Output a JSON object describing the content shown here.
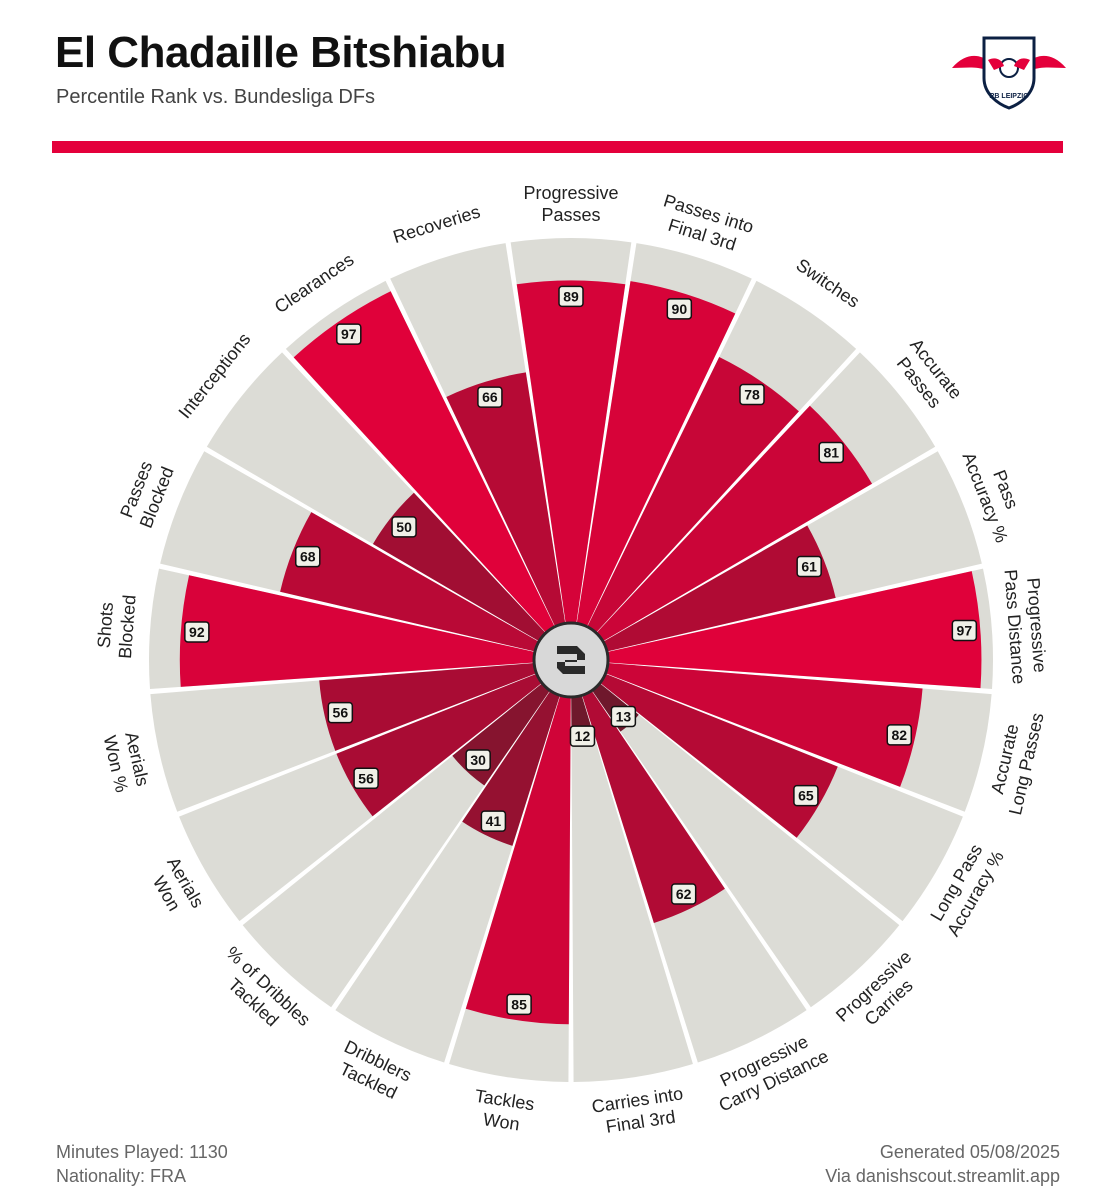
{
  "header": {
    "title": "El Chadaille Bitshiabu",
    "subtitle": "Percentile Rank vs. Bundesliga DFs",
    "logo_text": "RB LEIPZIG"
  },
  "footer": {
    "minutes": "Minutes Played: 1130",
    "nationality": "Nationality: FRA",
    "generated": "Generated 05/08/2025",
    "via": "Via danishscout.streamlit.app"
  },
  "colors": {
    "accent": "#e4003b",
    "background_wedge": "#dcdcd6",
    "low": "#5e1c2a",
    "high": "#e4003b"
  },
  "chart_data": {
    "type": "polar-bar",
    "title": "Percentile Rank vs. Bundesliga DFs",
    "rmax": 100,
    "categories": [
      "Progressive Passes",
      "Passes into Final 3rd",
      "Switches",
      "Accurate Passes",
      "Pass Accuracy %",
      "Progressive Pass Distance",
      "Accurate Long Passes",
      "Long Pass Accuracy %",
      "Progressive Carries",
      "Progressive Carry Distance",
      "Carries into Final 3rd",
      "Tackles Won",
      "Dribblers Tackled",
      "% of Dribbles Tackled",
      "Aerials Won",
      "Aerials Won %",
      "Shots Blocked",
      "Passes Blocked",
      "Interceptions",
      "Clearances",
      "Recoveries"
    ],
    "values": [
      89,
      90,
      78,
      81,
      61,
      97,
      82,
      65,
      13,
      62,
      12,
      85,
      41,
      30,
      56,
      56,
      92,
      68,
      50,
      97,
      66
    ]
  }
}
